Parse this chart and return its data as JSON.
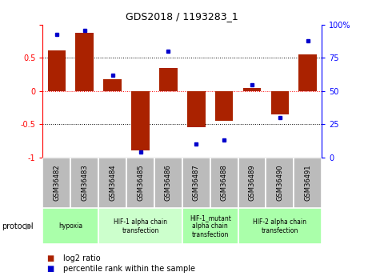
{
  "title": "GDS2018 / 1193283_1",
  "samples": [
    "GSM36482",
    "GSM36483",
    "GSM36484",
    "GSM36485",
    "GSM36486",
    "GSM36487",
    "GSM36488",
    "GSM36489",
    "GSM36490",
    "GSM36491"
  ],
  "log2_ratio": [
    0.62,
    0.88,
    0.18,
    -0.9,
    0.35,
    -0.55,
    -0.45,
    0.05,
    -0.35,
    0.55
  ],
  "percentile": [
    93,
    96,
    62,
    4,
    80,
    10,
    13,
    55,
    30,
    88
  ],
  "bar_color": "#AA2200",
  "dot_color": "#0000CC",
  "ylim_left": [
    -1.0,
    1.0
  ],
  "ylim_right": [
    0,
    100
  ],
  "yticks_left": [
    -1,
    -0.5,
    0,
    0.5,
    1
  ],
  "yticks_left_labels": [
    "-1",
    "-0.5",
    "0",
    "0.5",
    ""
  ],
  "yticks_right": [
    0,
    25,
    50,
    75,
    100
  ],
  "yticklabels_right": [
    "0",
    "25",
    "50",
    "75",
    "100%"
  ],
  "hlines_y": [
    0.5,
    0.0,
    -0.5
  ],
  "hlines_colors": [
    "black",
    "red",
    "black"
  ],
  "hlines_styles": [
    "dotted",
    "dotted",
    "dotted"
  ],
  "protocols": [
    {
      "label": "hypoxia",
      "start": 0,
      "end": 2,
      "color": "#AAFFAA"
    },
    {
      "label": "HIF-1 alpha chain\ntransfection",
      "start": 2,
      "end": 5,
      "color": "#CCFFCC"
    },
    {
      "label": "HIF-1_mutant\nalpha chain\ntransfection",
      "start": 5,
      "end": 7,
      "color": "#AAFFAA"
    },
    {
      "label": "HIF-2 alpha chain\ntransfection",
      "start": 7,
      "end": 10,
      "color": "#AAFFAA"
    }
  ],
  "protocol_label": "protocol",
  "legend_items": [
    {
      "color": "#AA2200",
      "label": "log2 ratio"
    },
    {
      "color": "#0000CC",
      "label": "percentile rank within the sample"
    }
  ],
  "bg_color": "#FFFFFF",
  "sample_bg_color": "#BBBBBB"
}
